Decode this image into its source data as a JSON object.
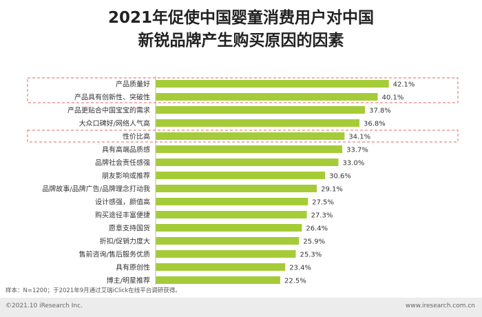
{
  "title_line1": "2021年促使中国婴童消费用户对中国",
  "title_line2": "新锐品牌产生购买原因的因素",
  "note": "样本：N=1200；于2021年9月通过艾瑞iClick在线平台调研获得。",
  "copyright": "©2021.10 iResearch Inc.",
  "website": "www.iresearch.com.cn",
  "colors": {
    "bar": "#a5cc38",
    "highlight_border": "#e06666",
    "title": "#222222"
  },
  "chart_data": {
    "type": "bar",
    "orientation": "horizontal",
    "categories": [
      "产品质量好",
      "产品具有创新性、突破性",
      "产品更贴合中国宝宝的需求",
      "大众口碑好/网络人气高",
      "性价比高",
      "具有高端品质感",
      "品牌社会责任感强",
      "朋友影响或推荐",
      "品牌故事/品牌广告/品牌理念打动我",
      "设计感强，颜值高",
      "购买途径丰富便捷",
      "愿意支持国货",
      "折扣/促销力度大",
      "售前咨询/售后服务优质",
      "具有原创性",
      "博主/明星推荐"
    ],
    "values": [
      42.1,
      40.1,
      37.8,
      36.8,
      34.1,
      33.7,
      33.0,
      30.6,
      29.1,
      27.5,
      27.3,
      26.4,
      25.9,
      25.3,
      23.4,
      22.5
    ],
    "labels": [
      "42.1%",
      "40.1%",
      "37.8%",
      "36.8%",
      "34.1%",
      "33.7%",
      "33.0%",
      "30.6%",
      "29.1%",
      "27.5%",
      "27.3%",
      "26.4%",
      "25.9%",
      "25.3%",
      "23.4%",
      "22.5%"
    ],
    "highlighted_groups": [
      [
        0,
        1
      ],
      [
        4
      ]
    ],
    "xlim": [
      0,
      45
    ],
    "grid": false,
    "legend": "none"
  }
}
